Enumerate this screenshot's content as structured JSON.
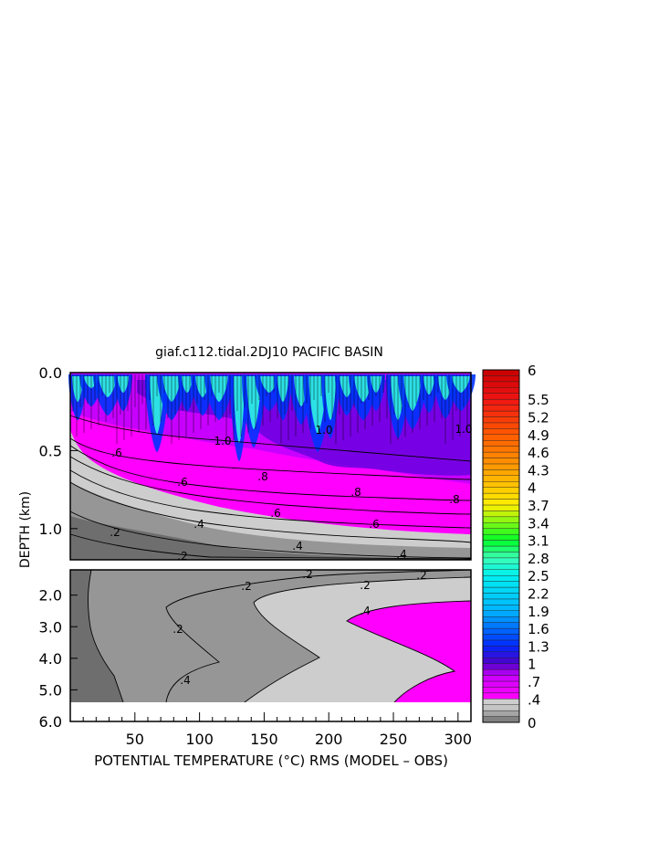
{
  "chart_data": {
    "type": "heatmap",
    "title": "giaf.c112.tidal.2DJ10 PACIFIC BASIN",
    "xlabel": "POTENTIAL TEMPERATURE (°C) RMS (MODEL – OBS)",
    "ylabel": "DEPTH (km)",
    "xlim": [
      0,
      310
    ],
    "x_ticks": [
      "50",
      "100",
      "150",
      "200",
      "250",
      "300"
    ],
    "upper_panel": {
      "ylim": [
        0.0,
        1.2
      ],
      "y_ticks": [
        "0.0",
        "0.5",
        "1.0"
      ],
      "contour_labels": [
        ".2",
        ".2",
        ".4",
        ".4",
        ".4",
        ".6",
        ".6",
        ".6",
        ".6",
        ".8",
        ".8",
        ".8",
        "1.0",
        "1.0",
        "1.0"
      ]
    },
    "lower_panel": {
      "ylim": [
        1.2,
        6.0
      ],
      "y_ticks": [
        "2.0",
        "3.0",
        "4.0",
        "5.0",
        "6.0"
      ],
      "contour_labels": [
        ".2",
        ".2",
        ".2",
        ".2",
        ".2",
        ".4",
        ".4"
      ]
    },
    "colorbar": {
      "range": [
        0,
        6
      ],
      "labels": [
        "6",
        "5.5",
        "5.2",
        "4.9",
        "4.6",
        "4.3",
        "4",
        "3.7",
        "3.4",
        "3.1",
        "2.8",
        "2.5",
        "2.2",
        "1.9",
        "1.6",
        "1.3",
        "1",
        ".7",
        ".4",
        "0"
      ],
      "label_values": [
        6,
        5.5,
        5.2,
        4.9,
        4.6,
        4.3,
        4,
        3.7,
        3.4,
        3.1,
        2.8,
        2.5,
        2.2,
        1.9,
        1.6,
        1.3,
        1,
        0.7,
        0.4,
        0
      ]
    },
    "colors": {
      "gray_0": "#6e6e6e",
      "gray_1": "#969696",
      "gray_2": "#cdcdcd",
      "magenta": "#ff00ff",
      "violet": "#c800ff",
      "indigo": "#6a00e0",
      "blue": "#0033ff",
      "cyan": "#33ffe0",
      "green": "#00ff33",
      "yellow": "#ffee00",
      "orange": "#ff8800",
      "red": "#e00000"
    }
  }
}
